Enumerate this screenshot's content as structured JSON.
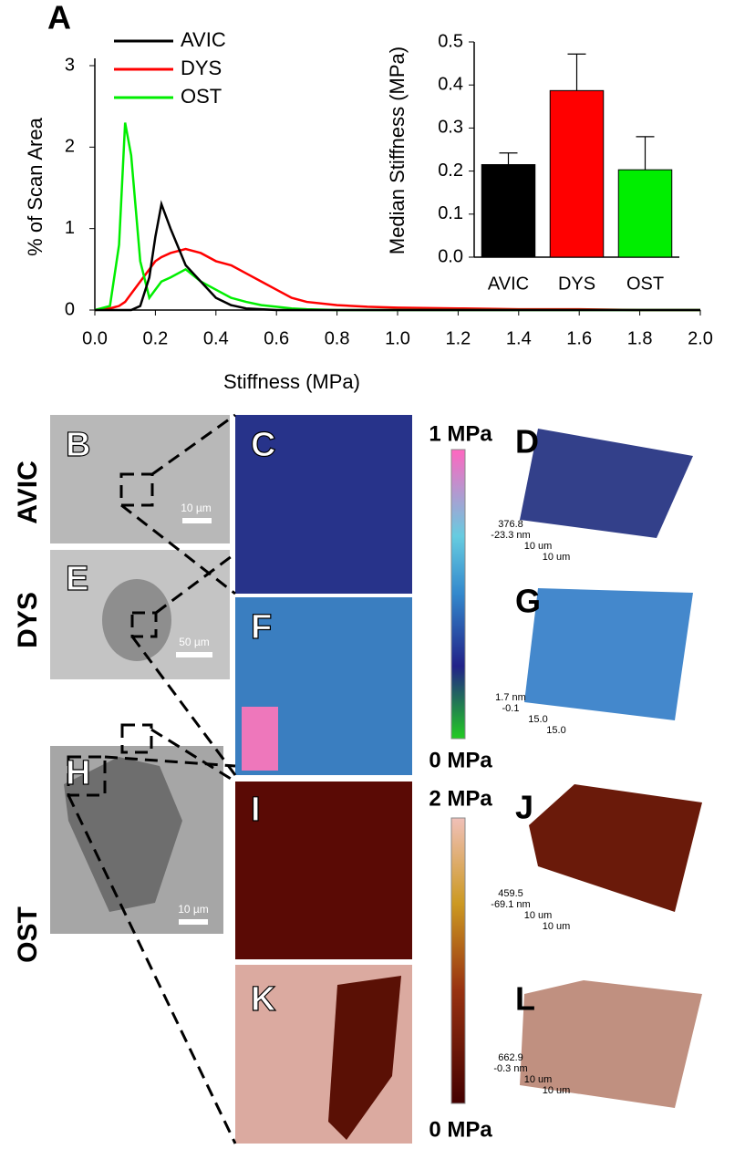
{
  "chart_data": [
    {
      "type": "line",
      "panel": "A",
      "xlabel": "Stiffness (MPa)",
      "ylabel": "% of Scan Area",
      "x": [
        0,
        0.05,
        0.08,
        0.1,
        0.12,
        0.15,
        0.18,
        0.2,
        0.22,
        0.25,
        0.3,
        0.35,
        0.4,
        0.45,
        0.5,
        0.55,
        0.6,
        0.65,
        0.7,
        0.8,
        0.9,
        1.0,
        1.2,
        1.4,
        1.6,
        1.8,
        2.0
      ],
      "series": [
        {
          "name": "AVIC",
          "color": "#000000",
          "values": [
            0,
            0,
            0,
            0,
            0,
            0.05,
            0.4,
            0.9,
            1.3,
            1.0,
            0.55,
            0.35,
            0.15,
            0.06,
            0.02,
            0.01,
            0,
            0,
            0,
            0,
            0,
            0,
            0,
            0,
            0,
            0,
            0
          ]
        },
        {
          "name": "DYS",
          "color": "#ff0000",
          "values": [
            0,
            0.02,
            0.05,
            0.1,
            0.2,
            0.35,
            0.5,
            0.6,
            0.65,
            0.7,
            0.75,
            0.7,
            0.6,
            0.55,
            0.45,
            0.35,
            0.25,
            0.15,
            0.1,
            0.06,
            0.04,
            0.03,
            0.02,
            0.01,
            0.01,
            0,
            0
          ]
        },
        {
          "name": "OST",
          "color": "#00ee00",
          "values": [
            0,
            0.05,
            0.8,
            2.3,
            1.9,
            0.6,
            0.15,
            0.25,
            0.35,
            0.4,
            0.5,
            0.35,
            0.25,
            0.15,
            0.1,
            0.06,
            0.04,
            0.02,
            0.01,
            0,
            0,
            0,
            0,
            0,
            0,
            0,
            0
          ]
        }
      ],
      "xlim": [
        0,
        2
      ],
      "xticks": [
        {
          "value": 0,
          "label": "0.0"
        },
        0.2,
        0.4,
        0.6,
        0.8,
        {
          "value": 1,
          "label": "1.0"
        },
        1.2,
        1.4,
        1.6,
        1.8,
        {
          "value": 2,
          "label": "2.0"
        }
      ],
      "ylim": [
        0,
        3
      ],
      "yticks": [
        0,
        1,
        2,
        3
      ]
    },
    {
      "type": "bar",
      "ylabel": "Median Stiffness (MPa)",
      "categories": [
        "AVIC",
        "DYS",
        "OST"
      ],
      "values": [
        0.215,
        0.387,
        0.203
      ],
      "errors": [
        0.027,
        0.085,
        0.077
      ],
      "colors": [
        "#000000",
        "#ff0000",
        "#00ee00"
      ],
      "ylim": [
        0,
        0.5
      ],
      "yticks": [
        {
          "value": 0,
          "label": "0.0"
        },
        0.1,
        0.2,
        0.3,
        0.4,
        0.5
      ]
    }
  ],
  "images": {
    "row_labels": [
      "AVIC",
      "DYS",
      "OST"
    ],
    "letters": [
      "B",
      "C",
      "D",
      "E",
      "F",
      "G",
      "H",
      "I",
      "J",
      "K",
      "L"
    ],
    "scale_bars": [
      "10 µm",
      "50 µm",
      "10 µm"
    ],
    "colorbars": [
      {
        "max": "1 MPa",
        "min": "0 MPa"
      },
      {
        "max": "2 MPa",
        "min": "0 MPa"
      }
    ],
    "surface_labels": [
      [
        "376.8",
        "-23.3 nm",
        "10 um",
        "10 um"
      ],
      [
        "1.7 nm",
        "-0.1",
        "15.0",
        "15.0"
      ],
      [
        "459.5",
        "-69.1 nm",
        "10 um",
        "10 um"
      ],
      [
        "662.9",
        "-0.3 nm",
        "10 um",
        "10 um"
      ]
    ]
  }
}
